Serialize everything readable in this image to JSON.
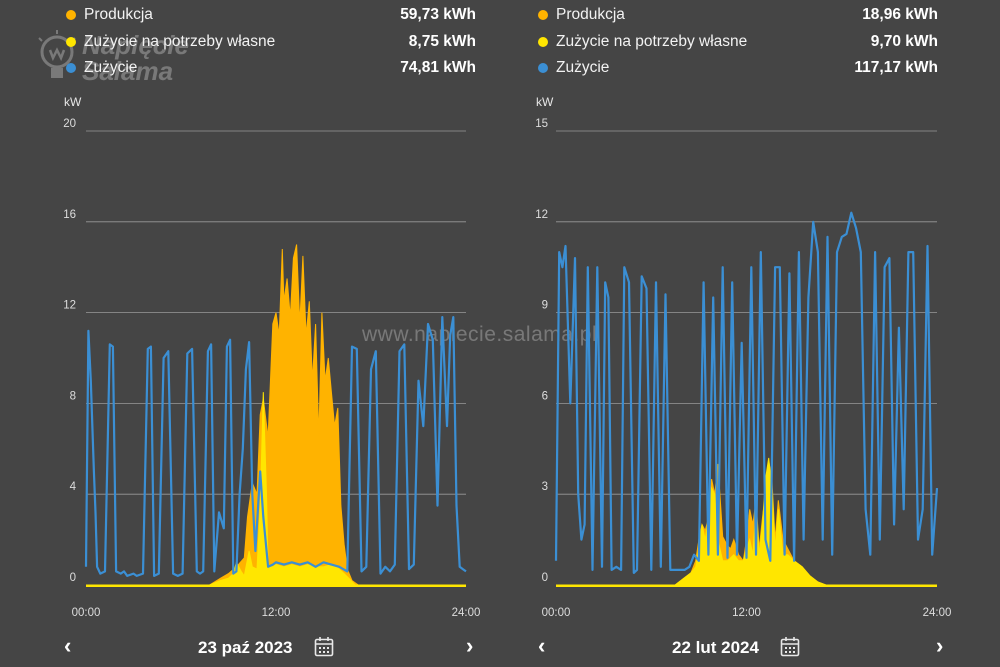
{
  "colors": {
    "background": "#454545",
    "production": "#FFB300",
    "self_consumption": "#FFE600",
    "consumption": "#3B8FD4",
    "grid": "#9a9a9a"
  },
  "icons": {
    "calendar": "calendar-icon",
    "prev": "chevron-left-icon",
    "next": "chevron-right-icon"
  },
  "watermark": {
    "logo_text": "Napięcie Salama",
    "url": "www.napiecie.salama.pl"
  },
  "panels": [
    {
      "legend": [
        {
          "label": "Produkcja",
          "value": "59,73 kWh",
          "color": "#FFB300"
        },
        {
          "label": "Zużycie na potrzeby własne",
          "value": "8,75 kWh",
          "color": "#FFE600"
        },
        {
          "label": "Zużycie",
          "value": "74,81 kWh",
          "color": "#3B8FD4"
        }
      ],
      "date": "23 paź 2023"
    },
    {
      "legend": [
        {
          "label": "Produkcja",
          "value": "18,96 kWh",
          "color": "#FFB300"
        },
        {
          "label": "Zużycie na potrzeby własne",
          "value": "9,70 kWh",
          "color": "#FFE600"
        },
        {
          "label": "Zużycie",
          "value": "117,17 kWh",
          "color": "#3B8FD4"
        }
      ],
      "date": "22 lut 2024"
    }
  ],
  "chart_data": [
    {
      "type": "area",
      "ylabel": "kW",
      "ylim": [
        0,
        20
      ],
      "yticks": [
        "0",
        "4",
        "8",
        "12",
        "16",
        "20"
      ],
      "xticks": [
        "00:00",
        "12:00",
        "24:00"
      ],
      "xlim": [
        0,
        24
      ],
      "grid": true,
      "series": [
        {
          "name": "Produkcja",
          "type": "area",
          "x": [
            0,
            7.8,
            8.5,
            9.0,
            9.5,
            10.0,
            10.2,
            10.5,
            10.8,
            11.0,
            11.2,
            11.5,
            11.8,
            12.0,
            12.2,
            12.4,
            12.5,
            12.7,
            12.9,
            13.1,
            13.3,
            13.5,
            13.7,
            13.9,
            14.1,
            14.3,
            14.5,
            14.7,
            14.9,
            15.1,
            15.3,
            15.5,
            15.7,
            15.9,
            16.1,
            16.3,
            16.5,
            16.8,
            17.2,
            24
          ],
          "y": [
            0,
            0,
            0.3,
            0.5,
            0.8,
            1.2,
            3.0,
            4.5,
            4.0,
            7.5,
            8.2,
            6.5,
            11.5,
            12.0,
            11.0,
            14.8,
            12.5,
            13.5,
            11.8,
            14.4,
            15.0,
            11.5,
            14.5,
            11.0,
            12.5,
            9.0,
            11.5,
            6.5,
            12.0,
            9.0,
            10.0,
            8.5,
            7.0,
            7.8,
            3.5,
            1.8,
            0.7,
            0.2,
            0,
            0
          ]
        },
        {
          "name": "Zużycie na potrzeby własne",
          "type": "area",
          "x": [
            0,
            7.8,
            8.5,
            9.0,
            9.3,
            9.5,
            9.8,
            10.0,
            10.3,
            10.5,
            10.8,
            11.0,
            11.2,
            11.4,
            11.5,
            11.8,
            12.0,
            12.5,
            13.0,
            13.5,
            14.0,
            14.5,
            15.0,
            15.5,
            16.0,
            16.3,
            16.6,
            17.0,
            24
          ],
          "y": [
            0,
            0,
            0.2,
            0.3,
            0.5,
            1.0,
            0.6,
            0.4,
            1.5,
            0.8,
            0.7,
            3.5,
            8.5,
            4.0,
            0.8,
            0.8,
            0.9,
            0.8,
            0.9,
            0.8,
            0.9,
            0.8,
            0.8,
            0.9,
            0.7,
            0.5,
            0.3,
            0,
            0
          ]
        },
        {
          "name": "Zużycie",
          "type": "line",
          "x": [
            0,
            0.15,
            0.3,
            0.5,
            0.6,
            0.7,
            0.9,
            1.2,
            1.5,
            1.7,
            1.9,
            2.2,
            2.4,
            2.6,
            3.0,
            3.2,
            3.6,
            3.9,
            4.1,
            4.3,
            4.6,
            4.9,
            5.2,
            5.5,
            5.8,
            6.1,
            6.4,
            6.7,
            7.0,
            7.2,
            7.4,
            7.7,
            7.9,
            8.1,
            8.4,
            8.7,
            8.9,
            9.1,
            9.3,
            9.5,
            9.7,
            9.9,
            10.1,
            10.3,
            10.5,
            10.7,
            11.0,
            11.2,
            11.5,
            11.8,
            12.0,
            12.5,
            13.0,
            13.5,
            14.0,
            14.5,
            15.0,
            15.5,
            16.0,
            16.5,
            16.8,
            17.1,
            17.4,
            17.7,
            18.0,
            18.3,
            18.6,
            18.9,
            19.2,
            19.5,
            19.8,
            20.1,
            20.4,
            20.7,
            21.0,
            21.3,
            21.6,
            21.9,
            22.2,
            22.5,
            22.8,
            23.0,
            23.2,
            23.4,
            23.6,
            23.8,
            24
          ],
          "y": [
            0.8,
            11.2,
            9.0,
            5.0,
            3.2,
            0.8,
            0.5,
            0.6,
            10.6,
            10.5,
            0.6,
            0.5,
            0.6,
            0.4,
            0.5,
            0.4,
            0.5,
            10.4,
            10.5,
            0.4,
            0.5,
            10.0,
            10.3,
            0.5,
            0.4,
            0.5,
            10.2,
            10.4,
            0.6,
            0.5,
            0.6,
            10.3,
            10.6,
            0.6,
            3.2,
            2.5,
            10.5,
            10.8,
            0.5,
            0.6,
            4.0,
            6.0,
            9.5,
            10.7,
            4.0,
            1.5,
            5.0,
            3.0,
            0.8,
            0.9,
            1.0,
            0.9,
            1.0,
            0.9,
            1.0,
            0.8,
            1.0,
            0.9,
            0.8,
            0.6,
            10.5,
            10.4,
            0.6,
            0.8,
            9.5,
            10.3,
            0.5,
            0.8,
            0.6,
            0.9,
            10.3,
            10.6,
            0.7,
            0.9,
            9.0,
            7.0,
            11.5,
            10.8,
            3.5,
            11.8,
            7.0,
            11.0,
            11.8,
            3.5,
            0.8,
            0.7,
            0.6
          ]
        }
      ]
    },
    {
      "type": "area",
      "ylabel": "kW",
      "ylim": [
        0,
        15
      ],
      "yticks": [
        "0",
        "3",
        "6",
        "9",
        "12",
        "15"
      ],
      "xticks": [
        "00:00",
        "12:00",
        "24:00"
      ],
      "xlim": [
        0,
        24
      ],
      "grid": true,
      "series": [
        {
          "name": "Produkcja",
          "type": "area",
          "x": [
            0,
            7.5,
            8.0,
            8.5,
            8.8,
            9.0,
            9.2,
            9.4,
            9.6,
            9.8,
            10.0,
            10.2,
            10.5,
            10.8,
            11.0,
            11.2,
            11.5,
            11.8,
            12.0,
            12.2,
            12.4,
            12.6,
            12.8,
            13.0,
            13.2,
            13.4,
            13.6,
            13.8,
            14.0,
            14.3,
            14.6,
            15.0,
            15.5,
            16.0,
            16.5,
            17.0,
            24
          ],
          "y": [
            0,
            0,
            0.2,
            0.4,
            0.8,
            1.5,
            2.0,
            1.8,
            2.2,
            3.5,
            3.0,
            4.0,
            1.6,
            1.3,
            1.2,
            1.5,
            1.0,
            0.8,
            1.5,
            2.5,
            2.0,
            2.8,
            1.2,
            2.2,
            3.0,
            4.1,
            3.5,
            1.5,
            2.8,
            1.5,
            1.2,
            0.8,
            0.6,
            0.3,
            0.1,
            0,
            0
          ]
        },
        {
          "name": "Zużycie na potrzeby własne",
          "type": "area",
          "x": [
            0,
            7.5,
            8.0,
            8.5,
            8.8,
            9.0,
            9.2,
            9.4,
            9.6,
            9.8,
            10.0,
            10.2,
            10.5,
            10.8,
            11.0,
            11.2,
            11.5,
            11.8,
            12.0,
            12.2,
            12.4,
            12.6,
            12.8,
            13.0,
            13.2,
            13.4,
            13.6,
            13.8,
            14.0,
            14.3,
            14.6,
            15.0,
            15.5,
            16.0,
            16.5,
            17.0,
            24
          ],
          "y": [
            0,
            0,
            0.2,
            0.4,
            0.6,
            1.2,
            2.0,
            1.5,
            2.2,
            3.2,
            3.0,
            1.5,
            0.8,
            0.8,
            0.9,
            1.0,
            0.8,
            0.8,
            1.2,
            1.5,
            1.0,
            2.6,
            1.0,
            2.0,
            3.5,
            4.2,
            3.2,
            1.2,
            2.5,
            1.0,
            1.0,
            0.8,
            0.6,
            0.3,
            0.1,
            0,
            0
          ]
        },
        {
          "name": "Zużycie",
          "type": "line",
          "x": [
            0,
            0.2,
            0.4,
            0.6,
            0.9,
            1.2,
            1.4,
            1.6,
            1.8,
            2.0,
            2.3,
            2.6,
            2.9,
            3.1,
            3.3,
            3.5,
            3.8,
            4.1,
            4.3,
            4.6,
            4.9,
            5.1,
            5.4,
            5.7,
            6.0,
            6.3,
            6.6,
            6.9,
            7.2,
            7.5,
            7.8,
            8.1,
            8.4,
            8.7,
            9.0,
            9.3,
            9.6,
            9.9,
            10.2,
            10.5,
            10.8,
            11.1,
            11.4,
            11.7,
            12.0,
            12.3,
            12.6,
            12.9,
            13.2,
            13.5,
            13.8,
            14.1,
            14.4,
            14.7,
            15.0,
            15.3,
            15.6,
            15.9,
            16.2,
            16.5,
            16.8,
            17.1,
            17.4,
            17.7,
            18.0,
            18.3,
            18.6,
            18.9,
            19.2,
            19.5,
            19.8,
            20.1,
            20.4,
            20.7,
            21.0,
            21.3,
            21.6,
            21.9,
            22.2,
            22.5,
            22.8,
            23.1,
            23.4,
            23.7,
            24
          ],
          "y": [
            0.8,
            11.0,
            10.5,
            11.2,
            6.0,
            10.8,
            3.0,
            1.5,
            2.0,
            10.5,
            0.5,
            10.5,
            0.6,
            10.0,
            9.5,
            0.5,
            0.6,
            0.5,
            10.5,
            10.0,
            0.4,
            0.5,
            10.2,
            9.8,
            0.5,
            10.0,
            0.6,
            9.6,
            0.5,
            0.5,
            0.5,
            0.5,
            0.6,
            1.0,
            0.8,
            10.0,
            1.0,
            9.5,
            1.0,
            10.5,
            0.9,
            10.0,
            1.0,
            8.0,
            0.9,
            10.5,
            1.0,
            11.0,
            1.5,
            0.8,
            10.5,
            10.5,
            1.0,
            10.3,
            0.8,
            11.0,
            1.5,
            9.5,
            12.0,
            11.0,
            1.5,
            11.5,
            1.0,
            11.0,
            11.5,
            11.6,
            12.3,
            11.8,
            11.0,
            2.5,
            1.0,
            11.0,
            1.5,
            10.5,
            10.8,
            2.0,
            8.5,
            2.5,
            11.0,
            11.0,
            1.5,
            2.5,
            11.2,
            1.0,
            3.2
          ]
        }
      ]
    }
  ]
}
